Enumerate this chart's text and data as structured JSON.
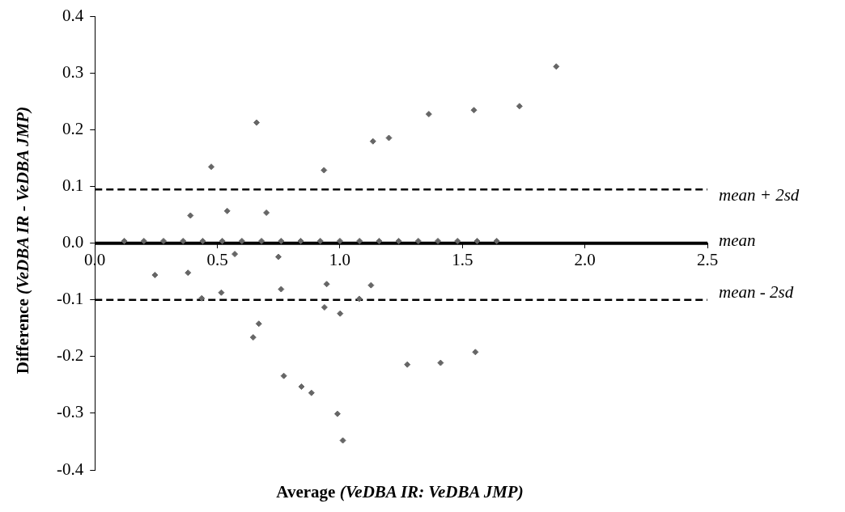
{
  "chart_data": {
    "type": "scatter",
    "xlabel": "Average (VeDBA IR: VeDBA JMP)",
    "ylabel": "Difference (VeDBA IR - VeDBA JMP)",
    "x": [
      0.39,
      0.475,
      0.54,
      0.66,
      0.7,
      0.935,
      1.135,
      1.2,
      1.363,
      1.547,
      1.733,
      1.883,
      0.749,
      0.571,
      0.245,
      0.38,
      0.436,
      0.516,
      0.76,
      0.946,
      1.127,
      1.079,
      0.937,
      1.001,
      0.669,
      0.646,
      0.771,
      0.843,
      0.884,
      0.99,
      1.012,
      1.275,
      1.411,
      1.553,
      0.12,
      0.2,
      0.28,
      0.36,
      0.44,
      0.52,
      0.6,
      0.68,
      0.76,
      0.84,
      0.92,
      1.0,
      1.08,
      1.16,
      1.24,
      1.32,
      1.4,
      1.48,
      1.56,
      1.64
    ],
    "series": [
      {
        "color": "#666666",
        "values": [
          0.049,
          0.135,
          0.057,
          0.213,
          0.054,
          0.129,
          0.18,
          0.186,
          0.228,
          0.235,
          0.242,
          0.312,
          -0.024,
          -0.019,
          -0.056,
          -0.052,
          -0.097,
          -0.087,
          -0.081,
          -0.072,
          -0.074,
          -0.098,
          -0.113,
          -0.124,
          -0.142,
          -0.166,
          -0.234,
          -0.253,
          -0.264,
          -0.301,
          -0.348,
          -0.214,
          -0.211,
          -0.192,
          0.004,
          0.004,
          0.004,
          0.004,
          0.004,
          0.004,
          0.004,
          0.004,
          0.004,
          0.004,
          0.004,
          0.004,
          0.004,
          0.004,
          0.004,
          0.004,
          0.004,
          0.004,
          0.004,
          0.004
        ]
      }
    ],
    "marker": "diamond",
    "xlim": [
      0,
      2.5
    ],
    "xticks": [
      {
        "value": 0,
        "label": "0.0"
      },
      0.5,
      {
        "value": 1,
        "label": "1.0"
      },
      1.5,
      {
        "value": 2,
        "label": "2.0"
      },
      2.5
    ],
    "ylim": [
      -0.4,
      0.4
    ],
    "yticks": [
      -0.4,
      -0.3,
      -0.2,
      -0.1,
      {
        "value": 0,
        "label": "0.0"
      },
      0.1,
      0.2,
      0.3,
      0.4
    ],
    "ref_lines": [
      {
        "axis": "y",
        "value": 0.095,
        "label": "mean + 2sd",
        "line_style": "dashed",
        "color": "#000000"
      },
      {
        "axis": "y",
        "value": 0,
        "label": "mean",
        "line_style": "solid",
        "color": "#000000"
      },
      {
        "axis": "y",
        "value": -0.1,
        "label": "mean - 2sd",
        "line_style": "dashed",
        "color": "#000000"
      }
    ],
    "grid": false,
    "legend": false
  }
}
